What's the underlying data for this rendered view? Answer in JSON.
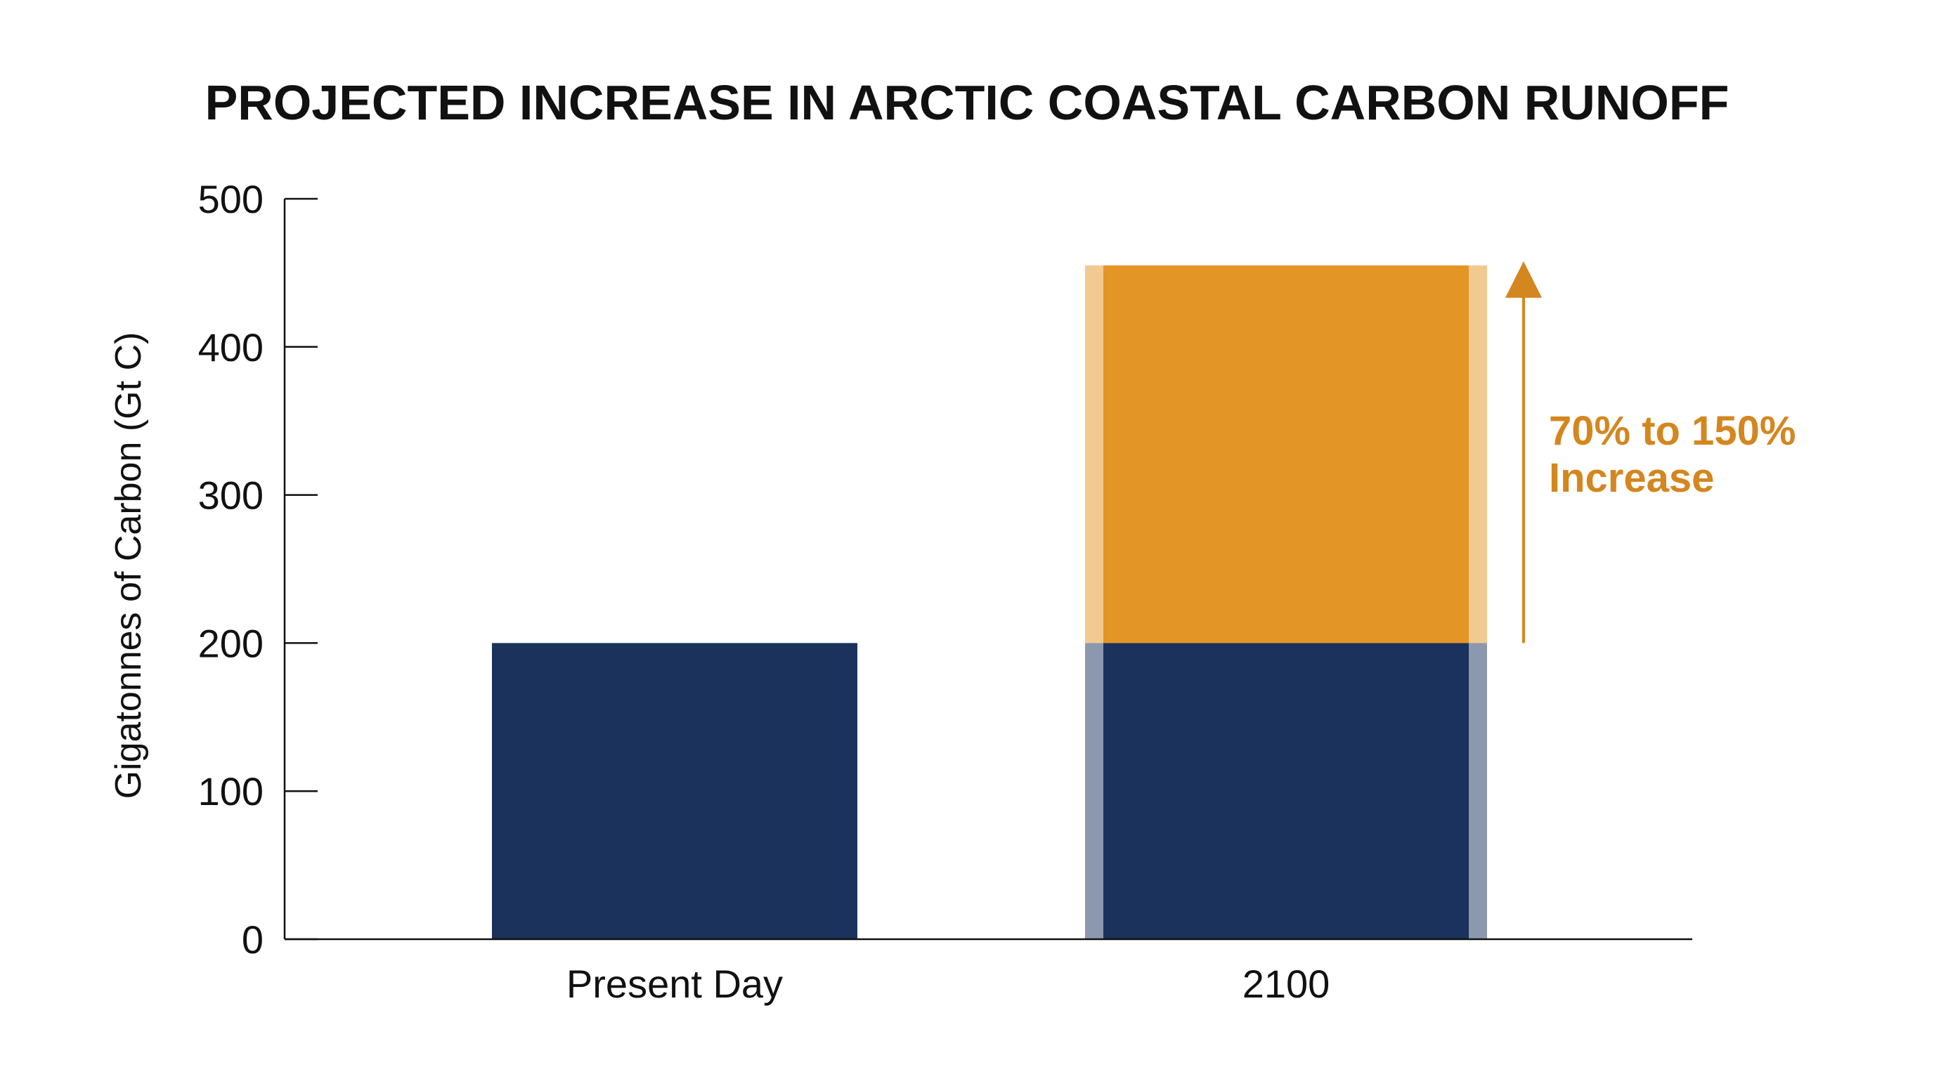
{
  "chart_data": {
    "type": "bar",
    "title": "PROJECTED INCREASE IN ARCTIC COASTAL CARBON RUNOFF",
    "xlabel": "",
    "ylabel": "Gigatonnes of Carbon (Gt C)",
    "ylim": [
      0,
      500
    ],
    "yticks": [
      "0",
      "100",
      "200",
      "300",
      "400",
      "500"
    ],
    "categories": [
      "Present Day",
      "2100"
    ],
    "series": [
      {
        "values": [
          200,
          200
        ],
        "color": "#1a325c"
      },
      {
        "values": [
          0,
          255
        ],
        "color": "#e39525"
      }
    ],
    "range_band": {
      "category": "2100",
      "low": 200,
      "high": 455
    },
    "annotation": {
      "line1": "70% to 150%",
      "line2": "Increase",
      "color": "#d4861f",
      "from": 200,
      "to": 455
    },
    "grid": false,
    "legend": "none"
  }
}
